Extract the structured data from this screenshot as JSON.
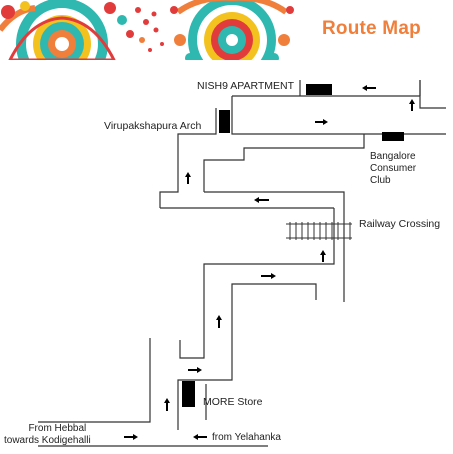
{
  "header": {
    "title": "Route Map",
    "title_color": "#f07f3c",
    "decoration": "mandala-pattern"
  },
  "landmarks": {
    "nish9_apartment": "NISH9 APARTMENT",
    "virupakshapura_arch": "Virupakshapura Arch",
    "bangalore_consumer_club": [
      "Bangalore",
      "Consumer",
      "Club"
    ],
    "railway_crossing": "Railway Crossing",
    "more_store": "MORE Store",
    "from_hebbal": [
      "From Hebbal",
      "towards Kodigehalli"
    ],
    "from_yelahanka": "from Yelahanka"
  },
  "colors": {
    "road_line": "#333333",
    "marker": "#000000",
    "teal": "#2fb8b0",
    "orange": "#f07f3c",
    "red": "#e23b3b",
    "yellow": "#f4c21f"
  }
}
